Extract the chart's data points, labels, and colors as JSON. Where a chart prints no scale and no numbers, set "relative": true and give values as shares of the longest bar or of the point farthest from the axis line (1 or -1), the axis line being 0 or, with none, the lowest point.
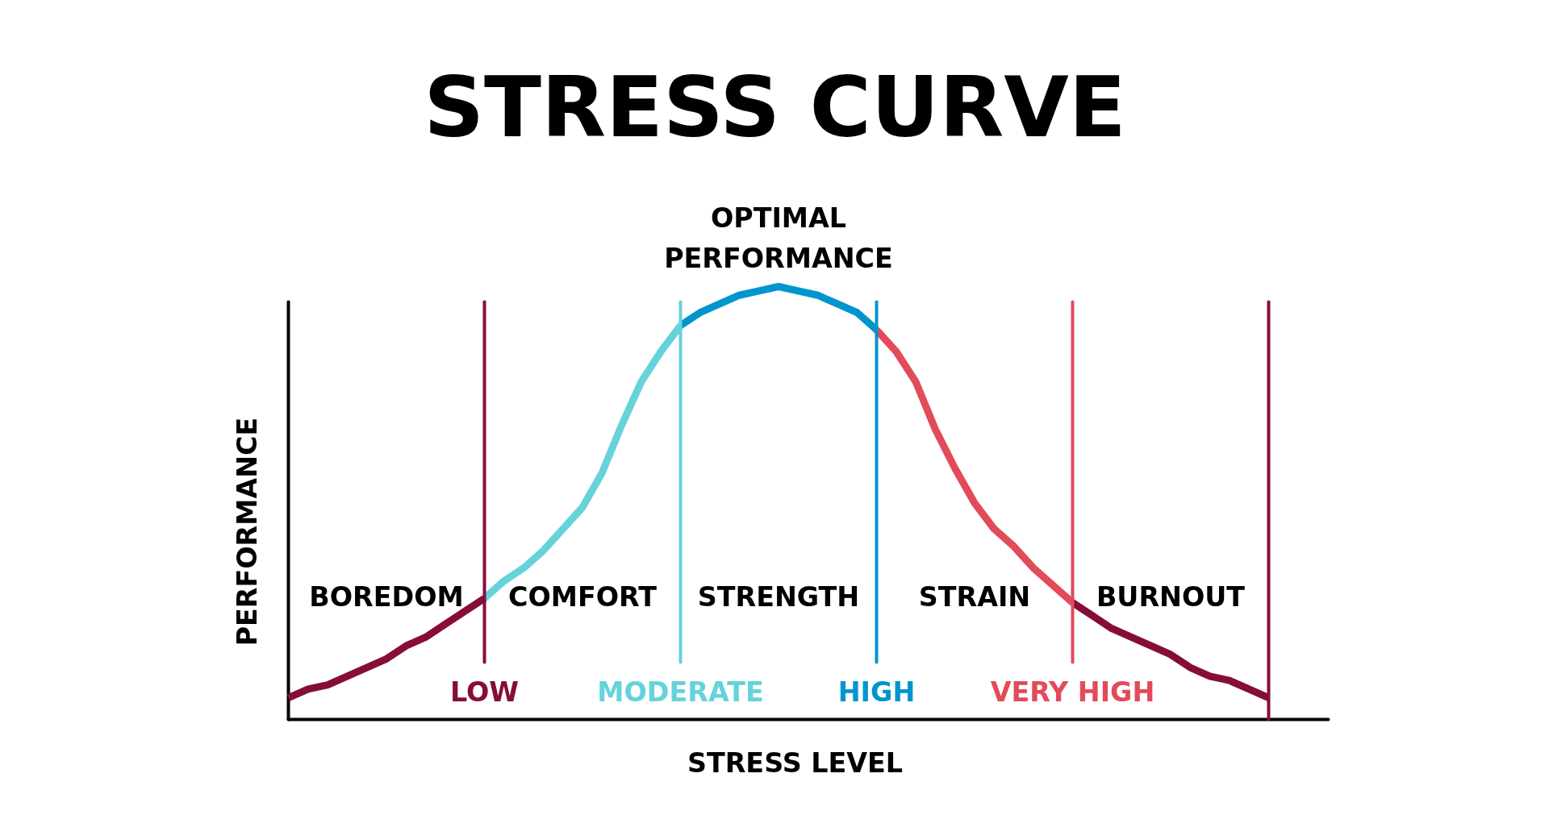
{
  "chart_data": {
    "type": "line",
    "title": "STRESS CURVE",
    "xlabel": "STRESS LEVEL",
    "ylabel": "PERFORMANCE",
    "relative": true,
    "categories": [
      null,
      null,
      null,
      null,
      null,
      null,
      null,
      null,
      null,
      null,
      "LOW",
      null,
      null,
      null,
      null,
      null,
      null,
      null,
      null,
      null,
      "MODERATE",
      null,
      null,
      null,
      null,
      null,
      null,
      null,
      null,
      null,
      "HIGH",
      null,
      null,
      null,
      null,
      null,
      null,
      null,
      null,
      null,
      "VERY HIGH",
      null,
      null,
      null,
      null,
      null,
      null,
      null,
      null,
      null,
      null
    ],
    "series": [
      {
        "color": "#860d3a",
        "values": [
          0.05,
          0.07,
          0.08,
          0.1,
          0.12,
          0.14,
          0.17,
          0.19,
          0.22,
          0.25,
          0.28,
          null,
          null,
          null,
          null,
          null,
          null,
          null,
          null,
          null,
          null,
          null,
          null,
          null,
          null,
          null,
          null,
          null,
          null,
          null,
          null,
          null,
          null,
          null,
          null,
          null,
          null,
          null,
          null,
          null,
          null,
          null,
          null,
          null,
          null,
          null,
          null,
          null,
          null,
          null,
          null
        ]
      },
      {
        "color": "#66d2d9",
        "values": [
          null,
          null,
          null,
          null,
          null,
          null,
          null,
          null,
          null,
          null,
          0.28,
          0.32,
          0.35,
          0.39,
          0.44,
          0.49,
          0.57,
          0.68,
          0.78,
          0.85,
          0.91,
          null,
          null,
          null,
          null,
          null,
          null,
          null,
          null,
          null,
          null,
          null,
          null,
          null,
          null,
          null,
          null,
          null,
          null,
          null,
          null,
          null,
          null,
          null,
          null,
          null,
          null,
          null,
          null,
          null,
          null
        ]
      },
      {
        "color": "#0095cd",
        "values": [
          null,
          null,
          null,
          null,
          null,
          null,
          null,
          null,
          null,
          null,
          null,
          null,
          null,
          null,
          null,
          null,
          null,
          null,
          null,
          null,
          0.91,
          0.94,
          0.96,
          0.98,
          0.99,
          1,
          0.99,
          0.98,
          0.96,
          0.94,
          0.9,
          null,
          null,
          null,
          null,
          null,
          null,
          null,
          null,
          null,
          null,
          null,
          null,
          null,
          null,
          null,
          null,
          null,
          null,
          null,
          null
        ]
      },
      {
        "color": "#e14b5a",
        "values": [
          null,
          null,
          null,
          null,
          null,
          null,
          null,
          null,
          null,
          null,
          null,
          null,
          null,
          null,
          null,
          null,
          null,
          null,
          null,
          null,
          null,
          null,
          null,
          null,
          null,
          null,
          null,
          null,
          null,
          null,
          0.9,
          0.85,
          0.78,
          0.67,
          0.58,
          0.5,
          0.44,
          0.4,
          0.35,
          0.31,
          0.27,
          null,
          null,
          null,
          null,
          null,
          null,
          null,
          null,
          null,
          null
        ]
      },
      {
        "color": "#860d3a",
        "values": [
          null,
          null,
          null,
          null,
          null,
          null,
          null,
          null,
          null,
          null,
          null,
          null,
          null,
          null,
          null,
          null,
          null,
          null,
          null,
          null,
          null,
          null,
          null,
          null,
          null,
          null,
          null,
          null,
          null,
          null,
          null,
          null,
          null,
          null,
          null,
          null,
          null,
          null,
          null,
          null,
          0.27,
          0.24,
          0.21,
          0.19,
          0.17,
          0.15,
          0.12,
          0.1,
          0.09,
          0.07,
          0.05
        ]
      }
    ],
    "ref_lines": [
      {
        "axis": "x",
        "value": "LOW",
        "color": "#860d3a"
      },
      {
        "axis": "x",
        "value": "MODERATE",
        "color": "#66d2d9"
      },
      {
        "axis": "x",
        "value": "HIGH",
        "color": "#0095cd"
      },
      {
        "axis": "x",
        "value": "VERY HIGH",
        "color": "#e14b5a"
      },
      {
        "axis": "x",
        "color": "#860d3a"
      }
    ],
    "annotations": [
      "BOREDOM",
      "COMFORT",
      "STRENGTH",
      "STRAIN",
      "BURNOUT",
      {
        "text": "OPTIMAL PERFORMANCE",
        "y": 1
      }
    ]
  }
}
